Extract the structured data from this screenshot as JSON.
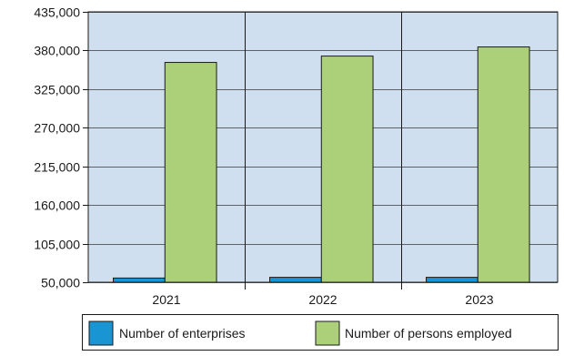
{
  "chart_data": {
    "type": "bar",
    "categories": [
      "2021",
      "2022",
      "2023"
    ],
    "series": [
      {
        "name": "Number of enterprises",
        "values": [
          56000,
          57000,
          57000
        ],
        "color": "#1a95d3"
      },
      {
        "name": "Number of persons employed",
        "values": [
          363000,
          372000,
          385000
        ],
        "color": "#acd07a"
      }
    ],
    "ylim": [
      50000,
      435000
    ],
    "yticks": [
      50000,
      105000,
      160000,
      215000,
      270000,
      325000,
      380000,
      435000
    ],
    "ytick_labels": [
      "50,000",
      "105,000",
      "160,000",
      "215,000",
      "270,000",
      "325,000",
      "380,000",
      "435,000"
    ],
    "plot_background": "#cfdfef",
    "grid": "horizontal",
    "legend_position": "bottom",
    "title": "",
    "xlabel": "",
    "ylabel": ""
  }
}
